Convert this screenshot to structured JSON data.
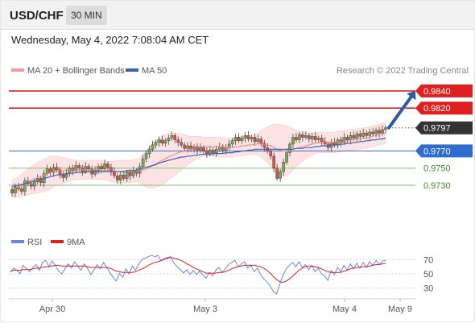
{
  "header": {
    "symbol": "USD/CHF",
    "timeframe": "30 MIN",
    "timestamp": "Wednesday, May 4, 2022 7:08:04 AM CET"
  },
  "legend": {
    "ma20_label": "MA 20 + Bollinger Bands",
    "ma50_label": "MA 50",
    "credit": "Research © 2022 Trading Central",
    "rsi_label": "RSI",
    "rsi_ma_label": "9MA"
  },
  "colors": {
    "candle_up": "#76a85a",
    "candle_down": "#e0504a",
    "bollinger_fill": "#fde3e3",
    "ma20": "#f08080",
    "ma50": "#3a64a8",
    "resistance": "#e02020",
    "pivot": "#4a7cc8",
    "support": "#9bc98a",
    "support_text": "#3a8a2a",
    "current": "#333333",
    "arrow": "#2a5aa8",
    "rsi": "#6688dd",
    "rsi_ma": "#dd2222"
  },
  "chart_data": [
    {
      "type": "candlestick",
      "title": "USD/CHF 30 MIN",
      "x_labels": [
        "Apr 30",
        "May 3",
        "May 4",
        "May 9"
      ],
      "y_range": [
        0.9684,
        0.9854
      ],
      "levels": [
        {
          "value": 0.984,
          "label": "0.9840",
          "kind": "resistance"
        },
        {
          "value": 0.982,
          "label": "0.9820",
          "kind": "resistance"
        },
        {
          "value": 0.9797,
          "label": "0.9797",
          "kind": "current"
        },
        {
          "value": 0.977,
          "label": "0.9770",
          "kind": "pivot"
        },
        {
          "value": 0.975,
          "label": "0.9750",
          "kind": "support"
        },
        {
          "value": 0.973,
          "label": "0.9730",
          "kind": "support"
        }
      ],
      "forecast_arrow": {
        "from": 0.9797,
        "to": 0.984
      },
      "close": [
        0.9721,
        0.9728,
        0.9726,
        0.9723,
        0.9735,
        0.9732,
        0.9729,
        0.9734,
        0.9738,
        0.9733,
        0.9744,
        0.9749,
        0.9745,
        0.9751,
        0.9748,
        0.9742,
        0.9739,
        0.9744,
        0.975,
        0.9747,
        0.9753,
        0.975,
        0.9746,
        0.9752,
        0.9749,
        0.9743,
        0.9747,
        0.9752,
        0.9749,
        0.9755,
        0.9751,
        0.9746,
        0.9741,
        0.9736,
        0.9742,
        0.9738,
        0.9745,
        0.9741,
        0.9747,
        0.9744,
        0.9752,
        0.9761,
        0.9767,
        0.9772,
        0.9777,
        0.978,
        0.9783,
        0.9779,
        0.9782,
        0.9785,
        0.9788,
        0.9783,
        0.978,
        0.9777,
        0.9773,
        0.9776,
        0.9772,
        0.9775,
        0.9771,
        0.9774,
        0.977,
        0.9767,
        0.9771,
        0.9768,
        0.9772,
        0.9775,
        0.9771,
        0.9774,
        0.9778,
        0.9782,
        0.9786,
        0.9782,
        0.9785,
        0.9788,
        0.9784,
        0.9786,
        0.9781,
        0.9784,
        0.9779,
        0.9774,
        0.977,
        0.9764,
        0.975,
        0.9738,
        0.9746,
        0.9757,
        0.9768,
        0.9778,
        0.9786,
        0.9783,
        0.9789,
        0.9786,
        0.9788,
        0.9784,
        0.9787,
        0.9783,
        0.9785,
        0.9781,
        0.9778,
        0.9774,
        0.978,
        0.9777,
        0.9783,
        0.978,
        0.9786,
        0.9783,
        0.9788,
        0.9785,
        0.979,
        0.9787,
        0.9791,
        0.9788,
        0.9792,
        0.979,
        0.9794,
        0.9791,
        0.9795,
        0.9797
      ],
      "ma20": [
        0.9726,
        0.9727,
        0.9728,
        0.973,
        0.9732,
        0.9734,
        0.9736,
        0.9737,
        0.9739,
        0.974,
        0.9742,
        0.9743,
        0.9745,
        0.9746,
        0.9747,
        0.9747,
        0.9747,
        0.9748,
        0.9748,
        0.9748,
        0.9748,
        0.9748,
        0.9748,
        0.9748,
        0.9748,
        0.9748,
        0.9748,
        0.9748,
        0.9748,
        0.9747,
        0.9747,
        0.9746,
        0.9746,
        0.9746,
        0.9746,
        0.9746,
        0.9746,
        0.9746,
        0.9747,
        0.9747,
        0.9747,
        0.9748,
        0.9749,
        0.9751,
        0.9753,
        0.9755,
        0.9757,
        0.9759,
        0.9761,
        0.9763,
        0.9765,
        0.9766,
        0.9768,
        0.9769,
        0.977,
        0.9771,
        0.9772,
        0.9773,
        0.9774,
        0.9775,
        0.9775,
        0.9775,
        0.9775,
        0.9775,
        0.9775,
        0.9775,
        0.9774,
        0.9774,
        0.9774,
        0.9774,
        0.9775,
        0.9775,
        0.9776,
        0.9776,
        0.9777,
        0.9777,
        0.9778,
        0.9778,
        0.9778,
        0.9778,
        0.9777,
        0.9776,
        0.9774,
        0.9772,
        0.9771,
        0.977,
        0.977,
        0.9771,
        0.9772,
        0.9773,
        0.9774,
        0.9775,
        0.9776,
        0.9777,
        0.9778,
        0.9779,
        0.978,
        0.978,
        0.978,
        0.978,
        0.978,
        0.978,
        0.9781,
        0.9781,
        0.9782,
        0.9782,
        0.9783,
        0.9783,
        0.9784,
        0.9784,
        0.9785,
        0.9785,
        0.9786,
        0.9787,
        0.9788,
        0.9789,
        0.979,
        0.9791
      ],
      "bb_width": [
        0.001,
        0.0011,
        0.0012,
        0.0013,
        0.0014,
        0.0015,
        0.0016,
        0.0017,
        0.0018,
        0.0018,
        0.0019,
        0.0019,
        0.0019,
        0.0018,
        0.0017,
        0.0016,
        0.0015,
        0.0014,
        0.0013,
        0.0012,
        0.0011,
        0.0011,
        0.0011,
        0.0011,
        0.0011,
        0.0011,
        0.0011,
        0.0011,
        0.0011,
        0.0011,
        0.0011,
        0.0012,
        0.0012,
        0.0013,
        0.0013,
        0.0013,
        0.0013,
        0.0013,
        0.0013,
        0.0013,
        0.0015,
        0.0018,
        0.0021,
        0.0024,
        0.0026,
        0.0027,
        0.0028,
        0.0028,
        0.0028,
        0.0027,
        0.0026,
        0.0025,
        0.0023,
        0.0021,
        0.0019,
        0.0017,
        0.0015,
        0.0014,
        0.0013,
        0.0012,
        0.0011,
        0.0011,
        0.0011,
        0.0011,
        0.0011,
        0.0011,
        0.0011,
        0.0011,
        0.0011,
        0.0011,
        0.0011,
        0.0011,
        0.0011,
        0.0011,
        0.0011,
        0.0011,
        0.0012,
        0.0013,
        0.0015,
        0.0018,
        0.0021,
        0.0024,
        0.0027,
        0.0029,
        0.003,
        0.003,
        0.0029,
        0.0027,
        0.0024,
        0.0021,
        0.0019,
        0.0017,
        0.0015,
        0.0014,
        0.0013,
        0.0012,
        0.0012,
        0.0012,
        0.0012,
        0.0012,
        0.0012,
        0.0012,
        0.0012,
        0.0012,
        0.0012,
        0.0012,
        0.0012,
        0.0012,
        0.0012,
        0.0012,
        0.0012,
        0.0012,
        0.0012,
        0.0012,
        0.0012,
        0.0012,
        0.0012,
        0.0012
      ],
      "ma50": [
        0.9729,
        0.9729,
        0.973,
        0.9731,
        0.9732,
        0.9733,
        0.9734,
        0.9735,
        0.9736,
        0.9737,
        0.9738,
        0.9739,
        0.974,
        0.9741,
        0.9742,
        0.9742,
        0.9743,
        0.9743,
        0.9744,
        0.9744,
        0.9745,
        0.9745,
        0.9745,
        0.9745,
        0.9746,
        0.9746,
        0.9746,
        0.9746,
        0.9746,
        0.9746,
        0.9746,
        0.9746,
        0.9746,
        0.9746,
        0.9746,
        0.9746,
        0.9747,
        0.9747,
        0.9747,
        0.9748,
        0.9749,
        0.975,
        0.9751,
        0.9752,
        0.9753,
        0.9754,
        0.9756,
        0.9757,
        0.9758,
        0.9759,
        0.976,
        0.9761,
        0.9762,
        0.9763,
        0.9763,
        0.9764,
        0.9764,
        0.9765,
        0.9765,
        0.9766,
        0.9766,
        0.9766,
        0.9766,
        0.9767,
        0.9767,
        0.9767,
        0.9767,
        0.9768,
        0.9768,
        0.9768,
        0.9769,
        0.9769,
        0.977,
        0.977,
        0.9771,
        0.9771,
        0.9772,
        0.9772,
        0.9772,
        0.9772,
        0.9772,
        0.9772,
        0.9772,
        0.9772,
        0.9772,
        0.9772,
        0.9772,
        0.9772,
        0.9772,
        0.9773,
        0.9773,
        0.9773,
        0.9774,
        0.9774,
        0.9774,
        0.9775,
        0.9775,
        0.9776,
        0.9776,
        0.9776,
        0.9777,
        0.9777,
        0.9777,
        0.9778,
        0.9778,
        0.9779,
        0.9779,
        0.978,
        0.978,
        0.9781,
        0.9781,
        0.9782,
        0.9782,
        0.9783,
        0.9783,
        0.9784,
        0.9784,
        0.9785
      ]
    },
    {
      "type": "line",
      "title": "RSI",
      "y_ticks": [
        70,
        50,
        30
      ],
      "y_range": [
        15,
        85
      ],
      "series": [
        {
          "name": "RSI",
          "values": [
            52,
            58,
            55,
            50,
            62,
            57,
            53,
            59,
            63,
            55,
            66,
            69,
            60,
            68,
            62,
            54,
            50,
            57,
            64,
            58,
            67,
            61,
            55,
            64,
            58,
            49,
            55,
            63,
            57,
            66,
            59,
            52,
            45,
            40,
            51,
            45,
            57,
            50,
            61,
            55,
            64,
            70,
            72,
            74,
            76,
            74,
            76,
            68,
            72,
            73,
            74,
            65,
            60,
            56,
            51,
            56,
            49,
            55,
            49,
            54,
            48,
            44,
            52,
            47,
            55,
            59,
            52,
            57,
            63,
            66,
            69,
            60,
            64,
            67,
            58,
            62,
            53,
            58,
            49,
            43,
            39,
            33,
            25,
            22,
            36,
            48,
            57,
            62,
            66,
            60,
            67,
            59,
            63,
            56,
            62,
            53,
            58,
            50,
            47,
            41,
            55,
            49,
            59,
            53,
            62,
            55,
            64,
            57,
            65,
            58,
            66,
            59,
            67,
            62,
            69,
            63,
            68,
            69
          ]
        },
        {
          "name": "9MA",
          "values": [
            54,
            55,
            55,
            55,
            56,
            56,
            56,
            57,
            58,
            58,
            59,
            60,
            60,
            61,
            62,
            62,
            61,
            61,
            61,
            61,
            61,
            61,
            61,
            61,
            60,
            59,
            59,
            59,
            59,
            59,
            59,
            58,
            56,
            54,
            53,
            52,
            52,
            52,
            52,
            53,
            55,
            57,
            59,
            62,
            64,
            66,
            67,
            69,
            70,
            72,
            73,
            72,
            71,
            69,
            67,
            64,
            62,
            59,
            57,
            55,
            53,
            51,
            51,
            51,
            51,
            52,
            52,
            53,
            55,
            57,
            59,
            60,
            61,
            62,
            62,
            62,
            62,
            61,
            60,
            58,
            55,
            51,
            46,
            42,
            39,
            38,
            40,
            43,
            47,
            51,
            55,
            58,
            60,
            61,
            61,
            60,
            59,
            57,
            55,
            53,
            52,
            52,
            52,
            52,
            54,
            55,
            57,
            58,
            59,
            59,
            60,
            60,
            61,
            62,
            63,
            63,
            64,
            65
          ]
        }
      ]
    }
  ]
}
